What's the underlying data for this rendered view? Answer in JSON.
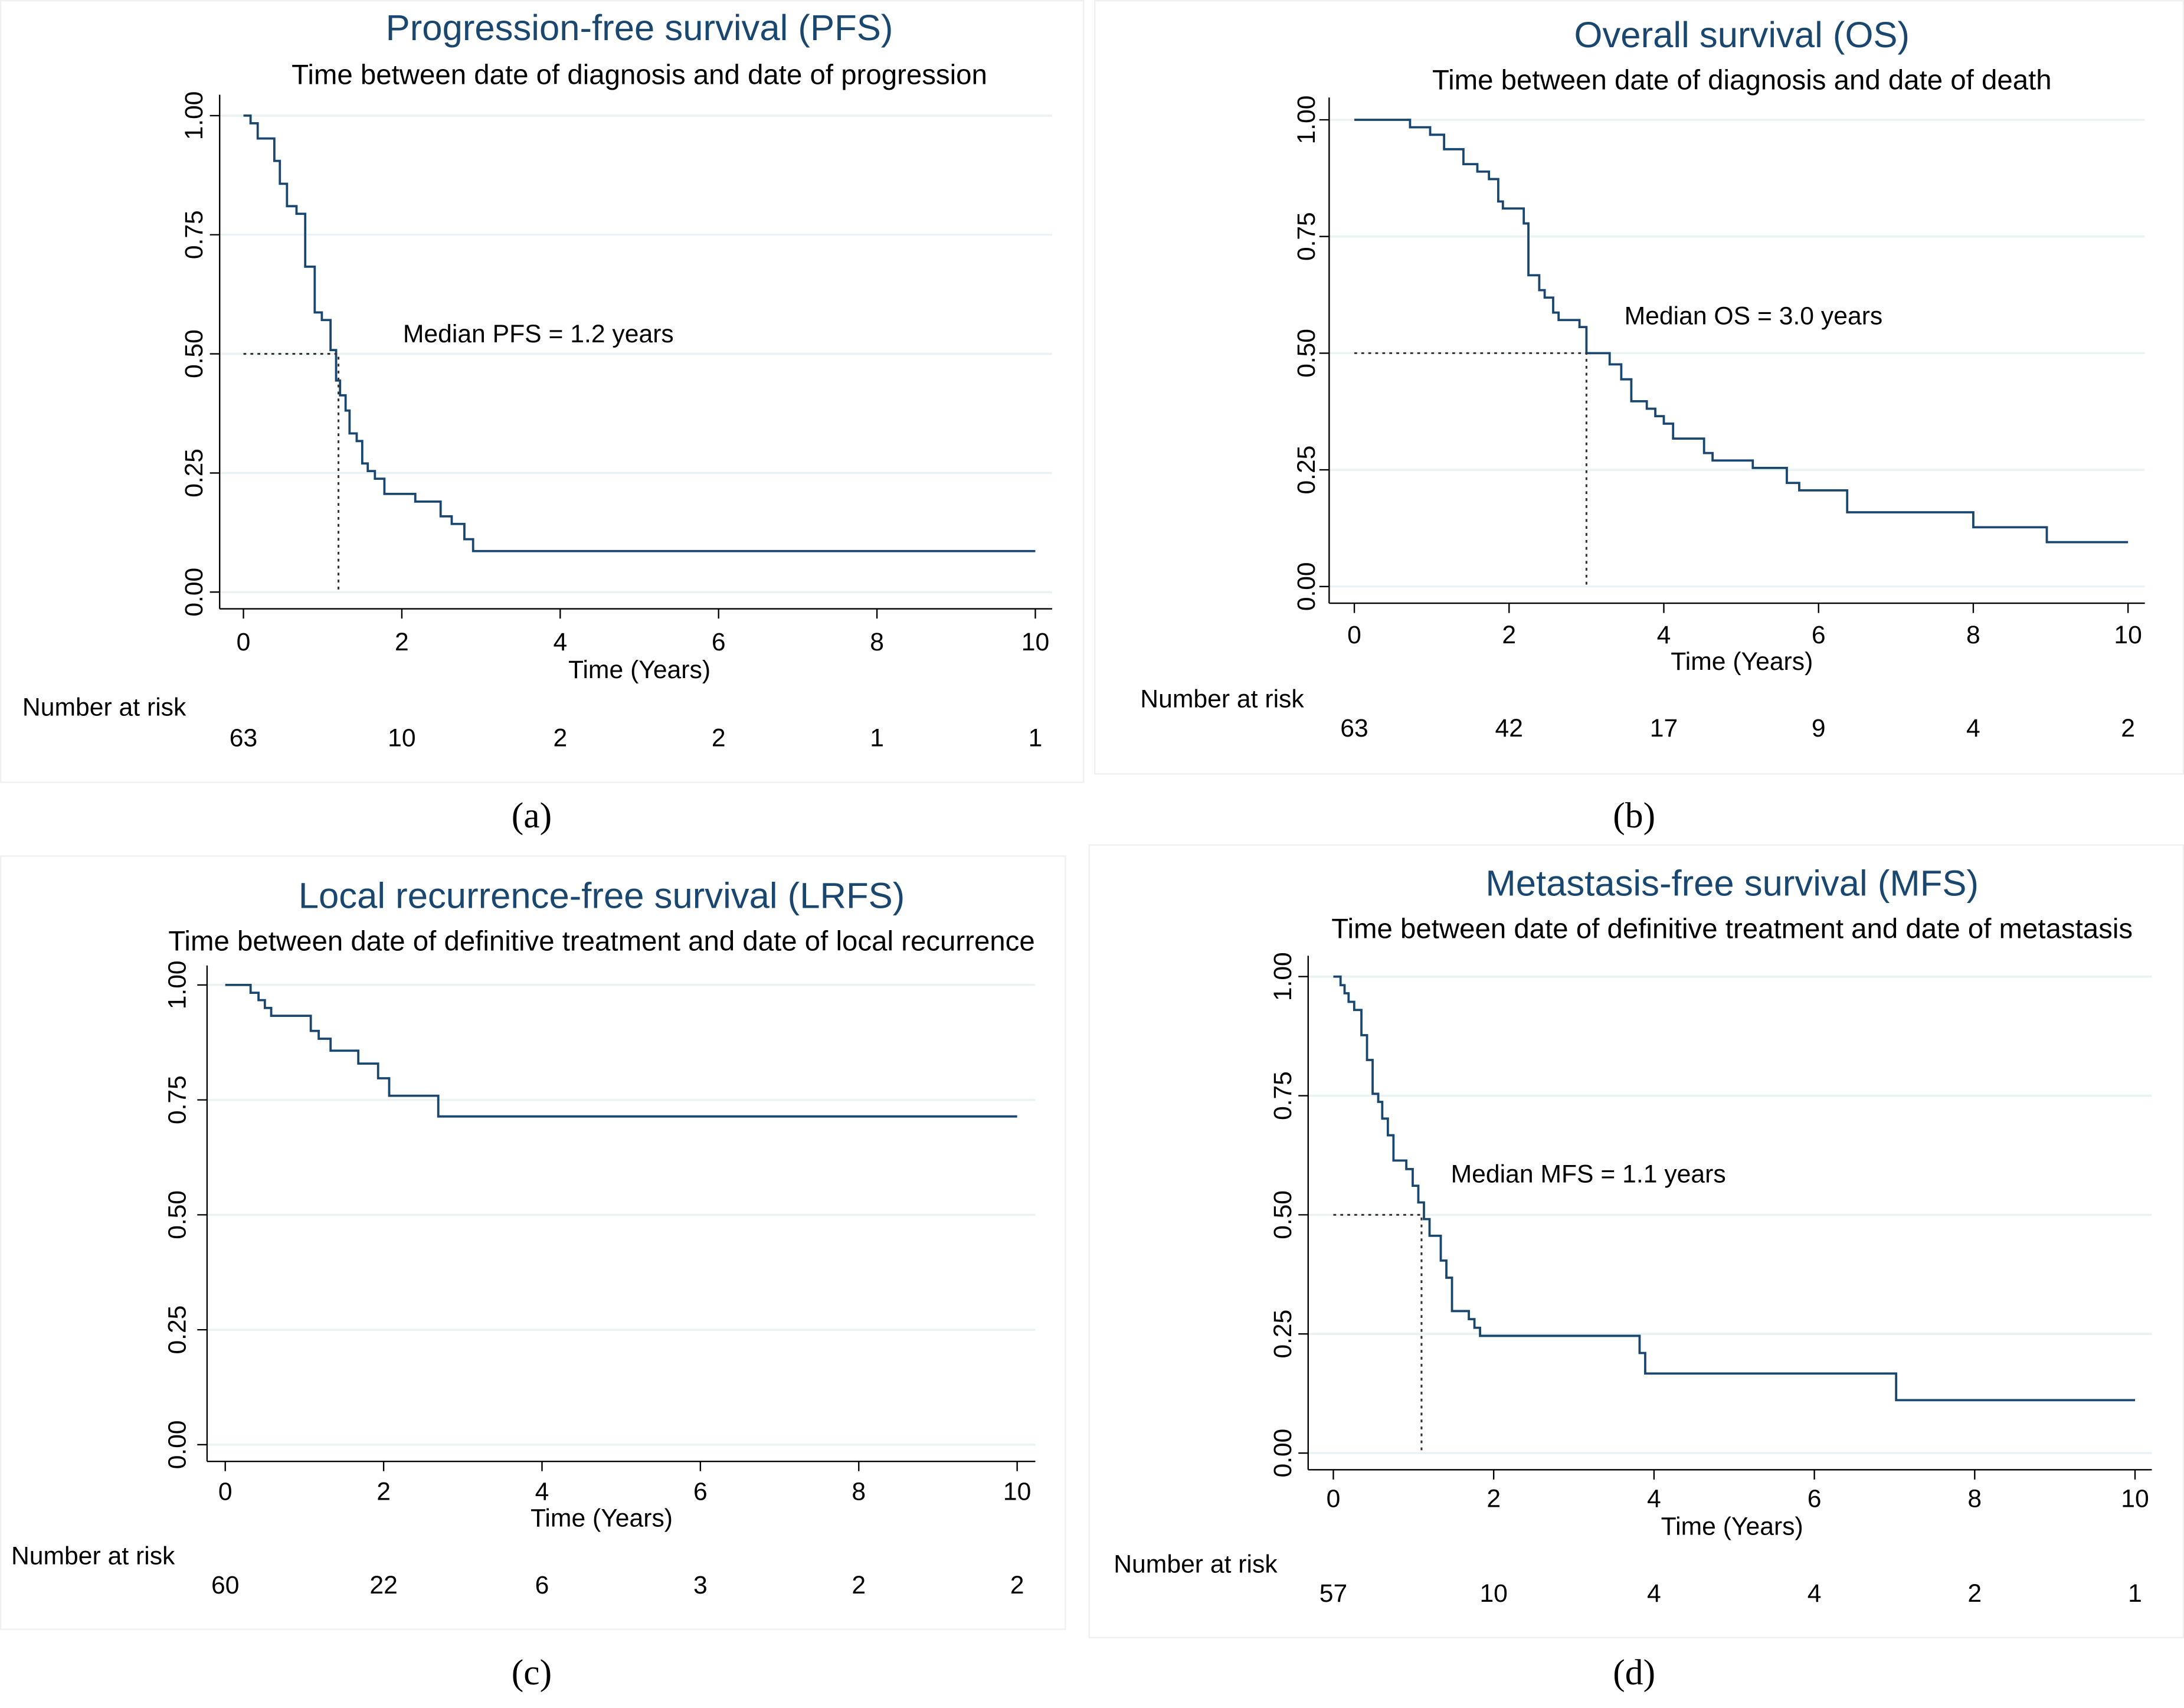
{
  "chart_data": [
    {
      "type": "step",
      "title": "Progression-free survival (PFS)",
      "subtitle": "Time between date of diagnosis and date of progression",
      "xlabel": "Time (Years)",
      "color": "#1a476f",
      "xlim": [
        0,
        10
      ],
      "ylim": [
        0,
        1
      ],
      "xticks": [
        0,
        2,
        4,
        6,
        8,
        10
      ],
      "yticks": [
        {
          "value": 0,
          "label": "0.00"
        },
        {
          "value": 0.25,
          "label": "0.25"
        },
        {
          "value": 0.5,
          "label": "0.50"
        },
        {
          "value": 0.75,
          "label": "0.75"
        },
        {
          "value": 1,
          "label": "1.00"
        }
      ],
      "x": [
        0,
        0.09,
        0.18,
        0.39,
        0.46,
        0.55,
        0.67,
        0.78,
        0.9,
        0.99,
        1.1,
        1.17,
        1.22,
        1.29,
        1.34,
        1.43,
        1.5,
        1.57,
        1.66,
        1.78,
        2.17,
        2.49,
        2.63,
        2.79,
        2.9,
        10
      ],
      "values": [
        1,
        0.984,
        0.952,
        0.905,
        0.857,
        0.81,
        0.794,
        0.683,
        0.587,
        0.571,
        0.508,
        0.444,
        0.413,
        0.381,
        0.333,
        0.317,
        0.27,
        0.254,
        0.238,
        0.206,
        0.19,
        0.159,
        0.143,
        0.111,
        0.086,
        0.086
      ],
      "annotation": "Median PFS = 1.2 years",
      "median": {
        "x": 1.2,
        "y": 0.5
      },
      "risk_label": "Number at risk",
      "number_at_risk": [
        63,
        10,
        2,
        2,
        1,
        1
      ],
      "panel_label": "(a)"
    },
    {
      "type": "step",
      "title": "Overall survival (OS)",
      "subtitle": "Time between date of diagnosis and date of death",
      "xlabel": "Time (Years)",
      "color": "#1a476f",
      "xlim": [
        0,
        10
      ],
      "ylim": [
        0,
        1
      ],
      "xticks": [
        0,
        2,
        4,
        6,
        8,
        10
      ],
      "yticks": [
        {
          "value": 0,
          "label": "0.00"
        },
        {
          "value": 0.25,
          "label": "0.25"
        },
        {
          "value": 0.5,
          "label": "0.50"
        },
        {
          "value": 0.75,
          "label": "0.75"
        },
        {
          "value": 1,
          "label": "1.00"
        }
      ],
      "x": [
        0,
        0.72,
        0.98,
        1.16,
        1.41,
        1.59,
        1.74,
        1.86,
        1.92,
        2.19,
        2.25,
        2.39,
        2.46,
        2.57,
        2.64,
        2.91,
        3.0,
        3.3,
        3.45,
        3.58,
        3.78,
        3.89,
        4.0,
        4.12,
        4.52,
        4.63,
        5.15,
        5.59,
        5.75,
        6.37,
        8.0,
        8.95,
        10
      ],
      "values": [
        1,
        0.984,
        0.968,
        0.937,
        0.905,
        0.889,
        0.873,
        0.825,
        0.81,
        0.778,
        0.667,
        0.635,
        0.619,
        0.587,
        0.571,
        0.556,
        0.5,
        0.476,
        0.444,
        0.397,
        0.381,
        0.365,
        0.349,
        0.317,
        0.286,
        0.27,
        0.254,
        0.222,
        0.206,
        0.159,
        0.127,
        0.095,
        0.095
      ],
      "annotation": "Median OS = 3.0 years",
      "median": {
        "x": 3.0,
        "y": 0.5
      },
      "risk_label": "Number at risk",
      "number_at_risk": [
        63,
        42,
        17,
        9,
        4,
        2
      ],
      "panel_label": "(b)"
    },
    {
      "type": "step",
      "title": "Local recurrence-free survival (LRFS)",
      "subtitle": "Time between date of definitive treatment and date of local recurrence",
      "xlabel": "Time (Years)",
      "color": "#1a476f",
      "xlim": [
        0,
        10
      ],
      "ylim": [
        0,
        1
      ],
      "xticks": [
        0,
        2,
        4,
        6,
        8,
        10
      ],
      "yticks": [
        {
          "value": 0,
          "label": "0.00"
        },
        {
          "value": 0.25,
          "label": "0.25"
        },
        {
          "value": 0.5,
          "label": "0.50"
        },
        {
          "value": 0.75,
          "label": "0.75"
        },
        {
          "value": 1,
          "label": "1.00"
        }
      ],
      "x": [
        0,
        0.32,
        0.42,
        0.5,
        0.58,
        1.08,
        1.18,
        1.33,
        1.68,
        1.93,
        2.07,
        2.69,
        10
      ],
      "values": [
        1,
        0.983,
        0.967,
        0.95,
        0.933,
        0.9,
        0.883,
        0.857,
        0.829,
        0.797,
        0.759,
        0.714,
        0.714
      ],
      "risk_label": "Number at risk",
      "number_at_risk": [
        60,
        22,
        6,
        3,
        2,
        2
      ],
      "panel_label": "(c)"
    },
    {
      "type": "step",
      "title": "Metastasis-free survival (MFS)",
      "subtitle": "Time between date of definitive treatment and date of metastasis",
      "xlabel": "Time (Years)",
      "color": "#1a476f",
      "xlim": [
        0,
        10
      ],
      "ylim": [
        0,
        1
      ],
      "xticks": [
        0,
        2,
        4,
        6,
        8,
        10
      ],
      "yticks": [
        {
          "value": 0,
          "label": "0.00"
        },
        {
          "value": 0.25,
          "label": "0.25"
        },
        {
          "value": 0.5,
          "label": "0.50"
        },
        {
          "value": 0.75,
          "label": "0.75"
        },
        {
          "value": 1,
          "label": "1.00"
        }
      ],
      "x": [
        0,
        0.09,
        0.14,
        0.19,
        0.26,
        0.35,
        0.42,
        0.49,
        0.56,
        0.61,
        0.68,
        0.75,
        0.91,
        0.99,
        1.06,
        1.13,
        1.2,
        1.34,
        1.41,
        1.48,
        1.69,
        1.76,
        1.83,
        3.82,
        3.89,
        7.02,
        10
      ],
      "values": [
        1,
        0.982,
        0.965,
        0.947,
        0.93,
        0.877,
        0.825,
        0.754,
        0.737,
        0.702,
        0.667,
        0.614,
        0.596,
        0.561,
        0.526,
        0.491,
        0.456,
        0.404,
        0.368,
        0.298,
        0.281,
        0.263,
        0.246,
        0.21,
        0.167,
        0.111,
        0.111
      ],
      "annotation": "Median MFS = 1.1 years",
      "median": {
        "x": 1.1,
        "y": 0.5
      },
      "risk_label": "Number at risk",
      "number_at_risk": [
        57,
        10,
        4,
        4,
        2,
        1
      ],
      "panel_label": "(d)"
    }
  ]
}
